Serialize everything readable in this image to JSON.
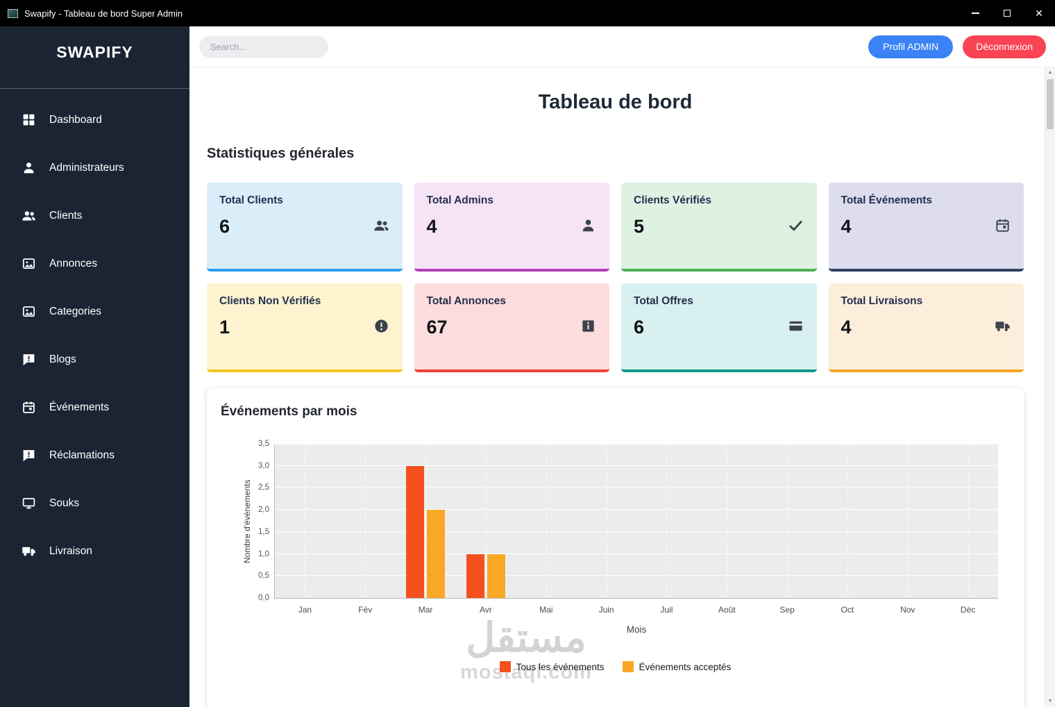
{
  "window": {
    "title": "Swapify - Tableau de bord Super Admin"
  },
  "theme": {
    "sidebar_bg": "#1b2433",
    "accent_blue": "#3b82f6",
    "accent_red": "#fa4353"
  },
  "sidebar": {
    "logo": "SWAPIFY",
    "items": [
      {
        "id": "dashboard",
        "label": "Dashboard",
        "icon": "grid-icon"
      },
      {
        "id": "administrateurs",
        "label": "Administrateurs",
        "icon": "person-icon"
      },
      {
        "id": "clients",
        "label": "Clients",
        "icon": "people-icon"
      },
      {
        "id": "annonces",
        "label": "Annonces",
        "icon": "image-icon"
      },
      {
        "id": "categories",
        "label": "Categories",
        "icon": "image-icon"
      },
      {
        "id": "blogs",
        "label": "Blogs",
        "icon": "chat-alert-icon"
      },
      {
        "id": "evenements",
        "label": "Événements",
        "icon": "calendar-icon"
      },
      {
        "id": "reclamations",
        "label": "Réclamations",
        "icon": "chat-alert-icon"
      },
      {
        "id": "souks",
        "label": "Souks",
        "icon": "monitor-icon"
      },
      {
        "id": "livraison",
        "label": "Livraison",
        "icon": "truck-icon"
      }
    ]
  },
  "topbar": {
    "search_placeholder": "Search...",
    "profile_button": "Profil ADMIN",
    "logout_button": "Déconnexion"
  },
  "main": {
    "page_title": "Tableau de bord",
    "stats_title": "Statistiques générales",
    "cards": [
      {
        "id": "total-clients",
        "title": "Total Clients",
        "value": "6",
        "icon": "people-icon",
        "bg": "#daeefa",
        "accent": "#2f9bf0"
      },
      {
        "id": "total-admins",
        "title": "Total Admins",
        "value": "4",
        "icon": "person-icon",
        "bg": "#f6e3f6",
        "accent": "#b13fb8"
      },
      {
        "id": "clients-verifies",
        "title": "Clients Vérifiés",
        "value": "5",
        "icon": "check-icon",
        "bg": "#def2e2",
        "accent": "#4caf50"
      },
      {
        "id": "total-evenements",
        "title": "Total Événements",
        "value": "4",
        "icon": "calendar-icon",
        "bg": "#dddded",
        "accent": "#2e3f63"
      },
      {
        "id": "clients-non-verifies",
        "title": "Clients Non Vérifiés",
        "value": "1",
        "icon": "alert-circle-icon",
        "bg": "#fdf3cf",
        "accent": "#f6c522"
      },
      {
        "id": "total-annonces",
        "title": "Total Annonces",
        "value": "67",
        "icon": "info-square-icon",
        "bg": "#fcdcdc",
        "accent": "#f0413c"
      },
      {
        "id": "total-offres",
        "title": "Total Offres",
        "value": "6",
        "icon": "credit-card-icon",
        "bg": "#d8f0ef",
        "accent": "#12968a"
      },
      {
        "id": "total-livraisons",
        "title": "Total Livraisons",
        "value": "4",
        "icon": "truck-icon",
        "bg": "#fdeedc",
        "accent": "#f5a623"
      }
    ]
  },
  "chart_data": {
    "type": "bar",
    "title": "Événements par mois",
    "categories": [
      "Jan",
      "Fév",
      "Mar",
      "Avr",
      "Mai",
      "Juin",
      "Juil",
      "Août",
      "Sep",
      "Oct",
      "Nov",
      "Déc"
    ],
    "series": [
      {
        "name": "Tous les événements",
        "color": "#f4511e",
        "values": [
          0,
          0,
          3,
          1,
          0,
          0,
          0,
          0,
          0,
          0,
          0,
          0
        ]
      },
      {
        "name": "Événements acceptés",
        "color": "#f9a825",
        "values": [
          0,
          0,
          2,
          1,
          0,
          0,
          0,
          0,
          0,
          0,
          0,
          0
        ]
      }
    ],
    "xlabel": "Mois",
    "ylabel": "Nombre d'événements",
    "ylim": [
      0,
      3.5
    ],
    "ytick_labels": [
      "0,0",
      "0,5",
      "1,0",
      "1,5",
      "2,0",
      "2,5",
      "3,0",
      "3,5"
    ],
    "grid": true,
    "legend_position": "bottom"
  },
  "watermark": {
    "line1": "مستقل",
    "line2": "mostaql.com"
  }
}
